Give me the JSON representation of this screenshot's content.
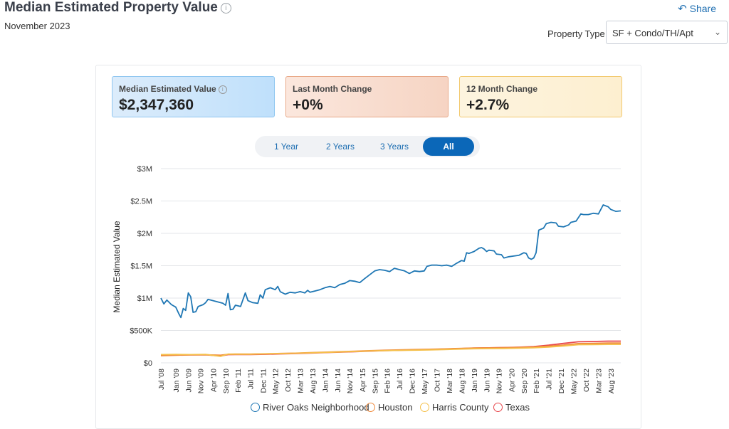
{
  "header": {
    "title": "Median Estimated Property Value",
    "subtitle": "November 2023",
    "share_label": "Share",
    "property_type_label": "Property Type",
    "property_type_value": "SF + Condo/TH/Apt"
  },
  "kpis": [
    {
      "label": "Median Estimated Value",
      "value": "$2,347,360"
    },
    {
      "label": "Last Month Change",
      "value": "+0%"
    },
    {
      "label": "12 Month Change",
      "value": "+2.7%"
    }
  ],
  "range_tabs": [
    "1 Year",
    "2 Years",
    "3 Years",
    "All"
  ],
  "active_tab": "All",
  "colors": {
    "river_oaks": "#1f77b4",
    "houston": "#f08a3c",
    "harris": "#f5c04a",
    "texas": "#e8474c",
    "accent": "#0b67b8"
  },
  "chart_data": {
    "type": "line",
    "ylabel": "Median Estimated Value",
    "xlabel": "",
    "ylim": [
      0,
      3000000
    ],
    "yticks": [
      {
        "value": 0,
        "label": "$0"
      },
      {
        "value": 500000,
        "label": "$500K"
      },
      {
        "value": 1000000,
        "label": "$1M"
      },
      {
        "value": 1500000,
        "label": "$1.5M"
      },
      {
        "value": 2000000,
        "label": "$2M"
      },
      {
        "value": 2500000,
        "label": "$2.5M"
      },
      {
        "value": 3000000,
        "label": "$3M"
      }
    ],
    "xlim": [
      2008.5,
      2023.92
    ],
    "xticks": [
      {
        "value": 2008.5,
        "label": "Jul '08"
      },
      {
        "value": 2009.0,
        "label": "Jan '09"
      },
      {
        "value": 2009.42,
        "label": "Jun '09"
      },
      {
        "value": 2009.83,
        "label": "Nov '09"
      },
      {
        "value": 2010.25,
        "label": "Apr '10"
      },
      {
        "value": 2010.67,
        "label": "Sep '10"
      },
      {
        "value": 2011.08,
        "label": "Feb '11"
      },
      {
        "value": 2011.5,
        "label": "Jul '11"
      },
      {
        "value": 2011.92,
        "label": "Dec '11"
      },
      {
        "value": 2012.33,
        "label": "May '12"
      },
      {
        "value": 2012.75,
        "label": "Oct '12"
      },
      {
        "value": 2013.17,
        "label": "Mar '13"
      },
      {
        "value": 2013.58,
        "label": "Aug '13"
      },
      {
        "value": 2014.0,
        "label": "Jan '14"
      },
      {
        "value": 2014.42,
        "label": "Jun '14"
      },
      {
        "value": 2014.83,
        "label": "Nov '14"
      },
      {
        "value": 2015.25,
        "label": "Apr '15"
      },
      {
        "value": 2015.67,
        "label": "Sep '15"
      },
      {
        "value": 2016.08,
        "label": "Feb '16"
      },
      {
        "value": 2016.5,
        "label": "Jul '16"
      },
      {
        "value": 2016.92,
        "label": "Dec '16"
      },
      {
        "value": 2017.33,
        "label": "May '17"
      },
      {
        "value": 2017.75,
        "label": "Oct '17"
      },
      {
        "value": 2018.17,
        "label": "Mar '18"
      },
      {
        "value": 2018.58,
        "label": "Aug '18"
      },
      {
        "value": 2019.0,
        "label": "Jan '19"
      },
      {
        "value": 2019.42,
        "label": "Jun '19"
      },
      {
        "value": 2019.83,
        "label": "Nov '19"
      },
      {
        "value": 2020.25,
        "label": "Apr '20"
      },
      {
        "value": 2020.67,
        "label": "Sep '20"
      },
      {
        "value": 2021.08,
        "label": "Feb '21"
      },
      {
        "value": 2021.5,
        "label": "Jul '21"
      },
      {
        "value": 2021.92,
        "label": "Dec '21"
      },
      {
        "value": 2022.33,
        "label": "May '22"
      },
      {
        "value": 2022.75,
        "label": "Oct '22"
      },
      {
        "value": 2023.17,
        "label": "Mar '23"
      },
      {
        "value": 2023.58,
        "label": "Aug '23"
      }
    ],
    "series": [
      {
        "name": "River Oaks Neighborhood",
        "color": "#1f77b4",
        "points": [
          [
            2008.5,
            1000000
          ],
          [
            2008.6,
            910000
          ],
          [
            2008.7,
            970000
          ],
          [
            2008.85,
            900000
          ],
          [
            2009.0,
            860000
          ],
          [
            2009.1,
            760000
          ],
          [
            2009.17,
            700000
          ],
          [
            2009.25,
            840000
          ],
          [
            2009.33,
            810000
          ],
          [
            2009.42,
            1080000
          ],
          [
            2009.5,
            1020000
          ],
          [
            2009.58,
            780000
          ],
          [
            2009.67,
            790000
          ],
          [
            2009.75,
            870000
          ],
          [
            2009.92,
            900000
          ],
          [
            2010.0,
            930000
          ],
          [
            2010.08,
            980000
          ],
          [
            2010.25,
            960000
          ],
          [
            2010.42,
            940000
          ],
          [
            2010.58,
            920000
          ],
          [
            2010.67,
            890000
          ],
          [
            2010.75,
            1070000
          ],
          [
            2010.83,
            820000
          ],
          [
            2010.92,
            830000
          ],
          [
            2011.0,
            890000
          ],
          [
            2011.17,
            870000
          ],
          [
            2011.33,
            1080000
          ],
          [
            2011.42,
            960000
          ],
          [
            2011.58,
            930000
          ],
          [
            2011.75,
            920000
          ],
          [
            2011.83,
            1050000
          ],
          [
            2011.92,
            1000000
          ],
          [
            2012.0,
            1130000
          ],
          [
            2012.17,
            1160000
          ],
          [
            2012.33,
            1130000
          ],
          [
            2012.42,
            1180000
          ],
          [
            2012.5,
            1100000
          ],
          [
            2012.67,
            1060000
          ],
          [
            2012.83,
            1090000
          ],
          [
            2013.0,
            1080000
          ],
          [
            2013.17,
            1100000
          ],
          [
            2013.33,
            1080000
          ],
          [
            2013.42,
            1120000
          ],
          [
            2013.5,
            1090000
          ],
          [
            2013.67,
            1110000
          ],
          [
            2013.83,
            1130000
          ],
          [
            2014.0,
            1160000
          ],
          [
            2014.17,
            1180000
          ],
          [
            2014.33,
            1160000
          ],
          [
            2014.5,
            1210000
          ],
          [
            2014.67,
            1230000
          ],
          [
            2014.83,
            1270000
          ],
          [
            2015.0,
            1260000
          ],
          [
            2015.17,
            1240000
          ],
          [
            2015.33,
            1300000
          ],
          [
            2015.5,
            1360000
          ],
          [
            2015.67,
            1420000
          ],
          [
            2015.83,
            1440000
          ],
          [
            2016.0,
            1430000
          ],
          [
            2016.17,
            1410000
          ],
          [
            2016.33,
            1460000
          ],
          [
            2016.5,
            1440000
          ],
          [
            2016.67,
            1420000
          ],
          [
            2016.83,
            1380000
          ],
          [
            2017.0,
            1420000
          ],
          [
            2017.17,
            1410000
          ],
          [
            2017.33,
            1420000
          ],
          [
            2017.42,
            1490000
          ],
          [
            2017.58,
            1510000
          ],
          [
            2017.75,
            1510000
          ],
          [
            2017.92,
            1500000
          ],
          [
            2018.08,
            1510000
          ],
          [
            2018.25,
            1490000
          ],
          [
            2018.42,
            1540000
          ],
          [
            2018.58,
            1580000
          ],
          [
            2018.67,
            1570000
          ],
          [
            2018.75,
            1700000
          ],
          [
            2018.83,
            1690000
          ],
          [
            2019.0,
            1720000
          ],
          [
            2019.17,
            1770000
          ],
          [
            2019.25,
            1780000
          ],
          [
            2019.33,
            1760000
          ],
          [
            2019.42,
            1720000
          ],
          [
            2019.5,
            1740000
          ],
          [
            2019.67,
            1730000
          ],
          [
            2019.75,
            1680000
          ],
          [
            2019.92,
            1670000
          ],
          [
            2020.0,
            1620000
          ],
          [
            2020.17,
            1640000
          ],
          [
            2020.33,
            1650000
          ],
          [
            2020.5,
            1660000
          ],
          [
            2020.67,
            1700000
          ],
          [
            2020.75,
            1690000
          ],
          [
            2020.83,
            1620000
          ],
          [
            2020.92,
            1600000
          ],
          [
            2021.0,
            1620000
          ],
          [
            2021.08,
            1700000
          ],
          [
            2021.17,
            2050000
          ],
          [
            2021.33,
            2080000
          ],
          [
            2021.42,
            2150000
          ],
          [
            2021.58,
            2170000
          ],
          [
            2021.75,
            2160000
          ],
          [
            2021.83,
            2110000
          ],
          [
            2022.0,
            2100000
          ],
          [
            2022.17,
            2130000
          ],
          [
            2022.25,
            2170000
          ],
          [
            2022.42,
            2190000
          ],
          [
            2022.58,
            2300000
          ],
          [
            2022.67,
            2290000
          ],
          [
            2022.83,
            2290000
          ],
          [
            2023.0,
            2310000
          ],
          [
            2023.17,
            2300000
          ],
          [
            2023.33,
            2440000
          ],
          [
            2023.5,
            2410000
          ],
          [
            2023.58,
            2370000
          ],
          [
            2023.75,
            2340000
          ],
          [
            2023.92,
            2347360
          ]
        ]
      },
      {
        "name": "Houston",
        "color": "#f08a3c",
        "points": [
          [
            2008.5,
            110000
          ],
          [
            2009.0,
            118000
          ],
          [
            2009.5,
            122000
          ],
          [
            2010.0,
            125000
          ],
          [
            2010.5,
            118000
          ],
          [
            2010.75,
            132000
          ],
          [
            2011.0,
            135000
          ],
          [
            2011.5,
            135000
          ],
          [
            2012.0,
            140000
          ],
          [
            2012.5,
            145000
          ],
          [
            2013.0,
            150000
          ],
          [
            2013.5,
            158000
          ],
          [
            2014.0,
            165000
          ],
          [
            2014.5,
            172000
          ],
          [
            2015.0,
            180000
          ],
          [
            2015.5,
            188000
          ],
          [
            2016.0,
            195000
          ],
          [
            2016.5,
            200000
          ],
          [
            2017.0,
            205000
          ],
          [
            2017.5,
            210000
          ],
          [
            2018.0,
            215000
          ],
          [
            2018.5,
            222000
          ],
          [
            2019.0,
            230000
          ],
          [
            2019.5,
            232000
          ],
          [
            2020.0,
            235000
          ],
          [
            2020.5,
            238000
          ],
          [
            2021.0,
            245000
          ],
          [
            2021.5,
            258000
          ],
          [
            2022.0,
            275000
          ],
          [
            2022.5,
            298000
          ],
          [
            2023.0,
            300000
          ],
          [
            2023.5,
            305000
          ],
          [
            2023.92,
            305000
          ]
        ]
      },
      {
        "name": "Harris County",
        "color": "#f5c04a",
        "points": [
          [
            2008.5,
            128000
          ],
          [
            2009.0,
            130000
          ],
          [
            2009.5,
            128000
          ],
          [
            2010.0,
            130000
          ],
          [
            2010.5,
            100000
          ],
          [
            2010.75,
            135000
          ],
          [
            2011.0,
            134000
          ],
          [
            2011.5,
            133000
          ],
          [
            2012.0,
            138000
          ],
          [
            2012.5,
            142000
          ],
          [
            2013.0,
            148000
          ],
          [
            2013.5,
            154000
          ],
          [
            2014.0,
            160000
          ],
          [
            2014.5,
            168000
          ],
          [
            2015.0,
            175000
          ],
          [
            2015.5,
            182000
          ],
          [
            2016.0,
            188000
          ],
          [
            2016.5,
            192000
          ],
          [
            2017.0,
            196000
          ],
          [
            2017.5,
            200000
          ],
          [
            2018.0,
            205000
          ],
          [
            2018.5,
            212000
          ],
          [
            2019.0,
            218000
          ],
          [
            2019.5,
            220000
          ],
          [
            2020.0,
            222000
          ],
          [
            2020.5,
            226000
          ],
          [
            2021.0,
            232000
          ],
          [
            2021.5,
            244000
          ],
          [
            2022.0,
            260000
          ],
          [
            2022.5,
            280000
          ],
          [
            2023.0,
            282000
          ],
          [
            2023.5,
            285000
          ],
          [
            2023.92,
            285000
          ]
        ]
      },
      {
        "name": "Texas",
        "color": "#e8474c",
        "points": [
          [
            2008.5,
            120000
          ],
          [
            2009.0,
            122000
          ],
          [
            2009.5,
            123000
          ],
          [
            2010.0,
            124000
          ],
          [
            2010.5,
            105000
          ],
          [
            2010.75,
            126000
          ],
          [
            2011.0,
            127000
          ],
          [
            2011.5,
            128000
          ],
          [
            2012.0,
            132000
          ],
          [
            2012.5,
            137000
          ],
          [
            2013.0,
            143000
          ],
          [
            2013.5,
            150000
          ],
          [
            2014.0,
            158000
          ],
          [
            2014.5,
            165000
          ],
          [
            2015.0,
            173000
          ],
          [
            2015.5,
            180000
          ],
          [
            2016.0,
            188000
          ],
          [
            2016.5,
            194000
          ],
          [
            2017.0,
            200000
          ],
          [
            2017.5,
            206000
          ],
          [
            2018.0,
            212000
          ],
          [
            2018.5,
            220000
          ],
          [
            2019.0,
            228000
          ],
          [
            2019.5,
            232000
          ],
          [
            2020.0,
            236000
          ],
          [
            2020.5,
            242000
          ],
          [
            2021.0,
            252000
          ],
          [
            2021.5,
            272000
          ],
          [
            2022.0,
            300000
          ],
          [
            2022.5,
            325000
          ],
          [
            2023.0,
            330000
          ],
          [
            2023.5,
            335000
          ],
          [
            2023.92,
            335000
          ]
        ]
      }
    ]
  }
}
